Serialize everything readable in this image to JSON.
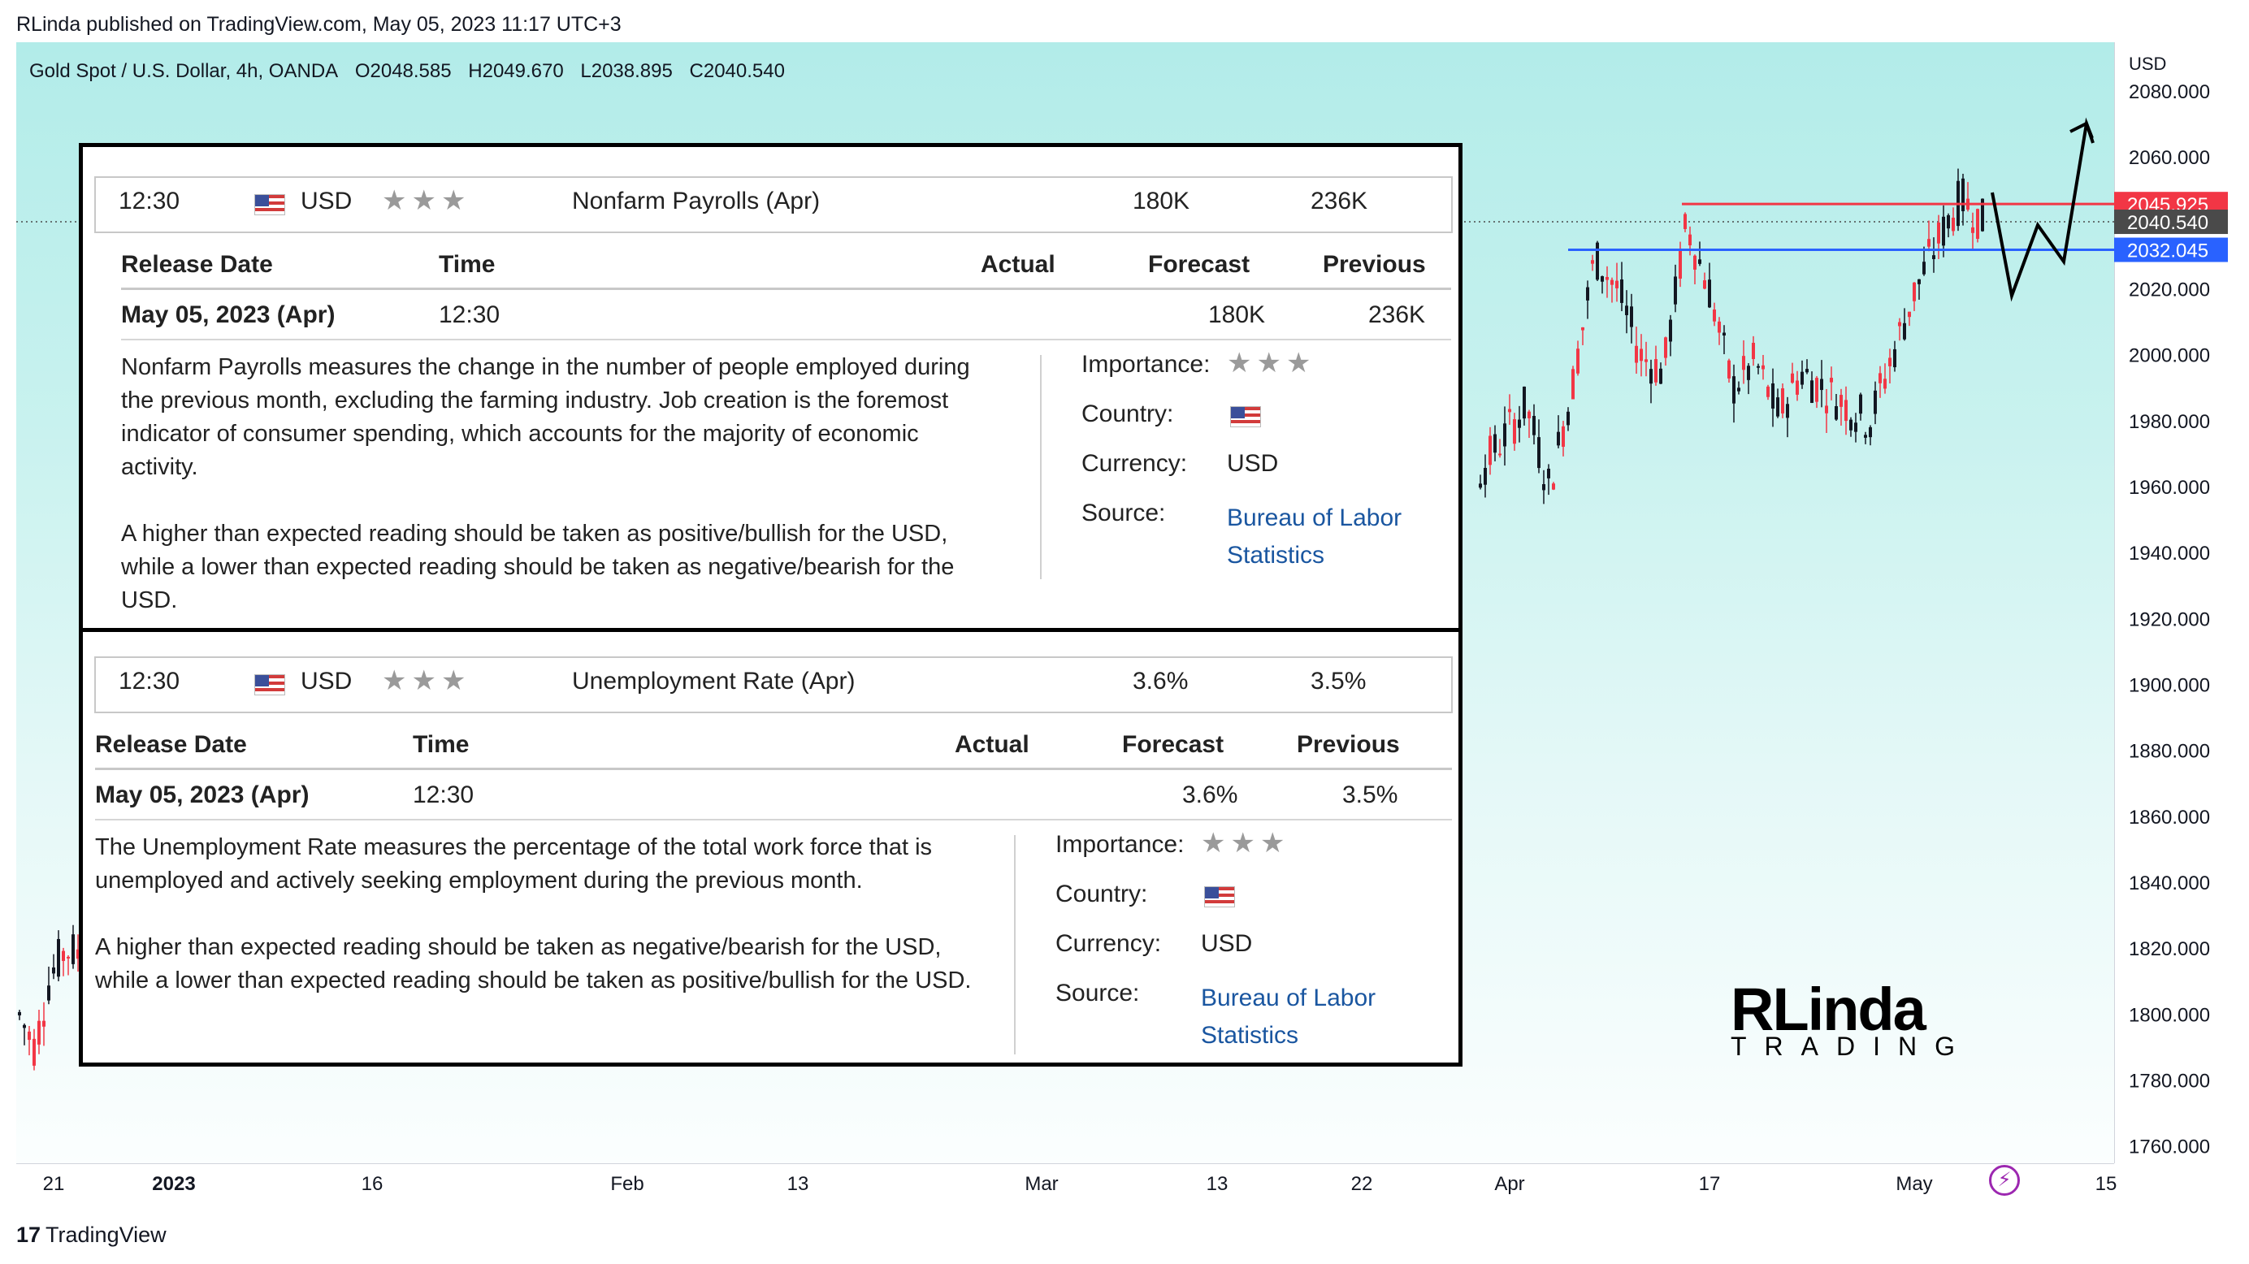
{
  "header": {
    "published": "RLinda published on TradingView.com, May 05, 2023 11:17 UTC+3"
  },
  "legend": {
    "symbol": "Gold Spot / U.S. Dollar, 4h, OANDA",
    "open": "O2048.585",
    "high": "H2049.670",
    "low": "L2038.895",
    "close": "C2040.540"
  },
  "price_scale": {
    "currency": "USD"
  },
  "chart_data": {
    "type": "candlestick",
    "title": "Gold Spot / U.S. Dollar, 4h, OANDA",
    "ylim": [
      1755,
      2095
    ],
    "y_ticks": [
      "2080.000",
      "2060.000",
      "2020.000",
      "2000.000",
      "1980.000",
      "1960.000",
      "1940.000",
      "1920.000",
      "1900.000",
      "1880.000",
      "1860.000",
      "1840.000",
      "1820.000",
      "1800.000",
      "1780.000",
      "1760.000"
    ],
    "x_ticks": [
      "21",
      "2023",
      "16",
      "Feb",
      "13",
      "Mar",
      "13",
      "22",
      "Apr",
      "17",
      "May",
      "15"
    ],
    "price_badges": [
      {
        "value": "2045.925",
        "color": "#f23645"
      },
      {
        "value": "2040.540",
        "color": "#4a4a4a"
      },
      {
        "value": "2032.045",
        "color": "#2962ff"
      }
    ],
    "horizontal_levels": [
      {
        "price": 2045.925,
        "color": "#f23645"
      },
      {
        "price": 2032.045,
        "color": "#2962ff"
      }
    ],
    "current_price": 2040.54
  },
  "events": [
    {
      "time": "12:30",
      "currency": "USD",
      "name": "Nonfarm Payrolls (Apr)",
      "forecast": "180K",
      "previous": "236K",
      "headers": {
        "release": "Release Date",
        "time": "Time",
        "actual": "Actual",
        "forecast": "Forecast",
        "previous": "Previous"
      },
      "release_date": "May 05, 2023 (Apr)",
      "release_time": "12:30",
      "detail_forecast": "180K",
      "detail_previous": "236K",
      "desc1": "Nonfarm Payrolls measures the change in the number of people employed during the previous month, excluding the farming industry. Job creation is the foremost indicator of consumer spending, which accounts for the majority of economic activity.",
      "desc2": "A higher than expected reading should be taken as positive/bullish for the USD, while a lower than expected reading should be taken as negative/bearish for the USD.",
      "importance_label": "Importance:",
      "country_label": "Country:",
      "currency_label": "Currency:",
      "currency_value": "USD",
      "source_label": "Source:",
      "source_line1": "Bureau of Labor",
      "source_line2": "Statistics"
    },
    {
      "time": "12:30",
      "currency": "USD",
      "name": "Unemployment Rate (Apr)",
      "forecast": "3.6%",
      "previous": "3.5%",
      "headers": {
        "release": "Release Date",
        "time": "Time",
        "actual": "Actual",
        "forecast": "Forecast",
        "previous": "Previous"
      },
      "release_date": "May 05, 2023 (Apr)",
      "release_time": "12:30",
      "detail_forecast": "3.6%",
      "detail_previous": "3.5%",
      "desc1": "The Unemployment Rate measures the percentage of the total work force that is unemployed and actively seeking employment during the previous month.",
      "desc2": "A higher than expected reading should be taken as negative/bearish for the USD, while a lower than expected reading should be taken as positive/bullish for the USD.",
      "importance_label": "Importance:",
      "country_label": "Country:",
      "currency_label": "Currency:",
      "currency_value": "USD",
      "source_label": "Source:",
      "source_line1": "Bureau of Labor",
      "source_line2": "Statistics"
    }
  ],
  "logo": {
    "big": "RLinda",
    "small": "TRADING"
  },
  "footer": {
    "brand": "TradingView"
  }
}
